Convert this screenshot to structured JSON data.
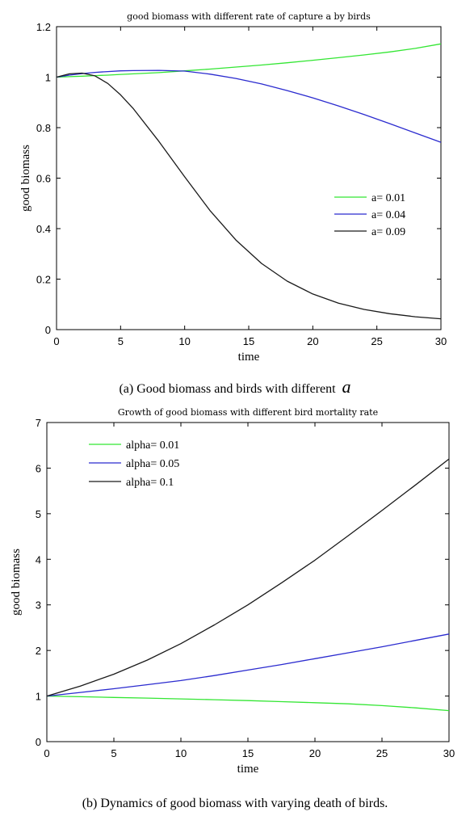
{
  "colors": {
    "green": "#33e633",
    "blue": "#2b2bcf",
    "black": "#1a1a1a",
    "axis": "#000000"
  },
  "captions": {
    "a": {
      "text": "(a) Good biomass and birds with different",
      "var": "a"
    },
    "b": {
      "text": "(b) Dynamics of good biomass with varying death of birds."
    }
  },
  "chart_data": [
    {
      "type": "line",
      "title": "good biomass with different rate of capture a by birds",
      "xlabel": "time",
      "ylabel": "good biomass",
      "xlim": [
        0,
        30
      ],
      "ylim": [
        0,
        1.2
      ],
      "xticks": [
        "0",
        "5",
        "10",
        "15",
        "20",
        "25",
        "30"
      ],
      "yticks": [
        "0",
        "0.2",
        "0.4",
        "0.6",
        "0.8",
        "1",
        "1.2"
      ],
      "legend_position": "middle-right",
      "x": [
        0,
        1,
        2,
        3,
        4,
        5,
        6,
        8,
        10,
        12,
        14,
        16,
        18,
        20,
        22,
        24,
        26,
        28,
        30
      ],
      "series": [
        {
          "name": "a= 0.01",
          "color": "green",
          "values": [
            1.0,
            1.002,
            1.004,
            1.006,
            1.008,
            1.011,
            1.013,
            1.018,
            1.025,
            1.032,
            1.04,
            1.048,
            1.057,
            1.067,
            1.077,
            1.088,
            1.1,
            1.114,
            1.132
          ]
        },
        {
          "name": "a= 0.04",
          "color": "blue",
          "values": [
            1.0,
            1.008,
            1.014,
            1.019,
            1.022,
            1.025,
            1.026,
            1.027,
            1.024,
            1.012,
            0.995,
            0.973,
            0.947,
            0.918,
            0.886,
            0.852,
            0.816,
            0.779,
            0.742
          ]
        },
        {
          "name": "a= 0.09",
          "color": "black",
          "values": [
            1.0,
            1.013,
            1.016,
            1.005,
            0.975,
            0.93,
            0.875,
            0.745,
            0.605,
            0.47,
            0.355,
            0.262,
            0.192,
            0.141,
            0.105,
            0.08,
            0.063,
            0.051,
            0.043
          ]
        }
      ]
    },
    {
      "type": "line",
      "title": "Growth of good biomass with different bird mortality rate",
      "xlabel": "time",
      "ylabel": "good biomass",
      "xlim": [
        0,
        30
      ],
      "ylim": [
        0,
        7
      ],
      "xticks": [
        "0",
        "5",
        "10",
        "15",
        "20",
        "25",
        "30"
      ],
      "yticks": [
        "0",
        "1",
        "2",
        "3",
        "4",
        "5",
        "6",
        "7"
      ],
      "legend_position": "top-left",
      "x": [
        0,
        2.5,
        5,
        7.5,
        10,
        12.5,
        15,
        17.5,
        20,
        22.5,
        25,
        27.5,
        30
      ],
      "series": [
        {
          "name": "alpha= 0.01",
          "color": "green",
          "values": [
            1.0,
            0.985,
            0.97,
            0.955,
            0.938,
            0.92,
            0.9,
            0.878,
            0.855,
            0.83,
            0.79,
            0.74,
            0.68
          ]
        },
        {
          "name": "alpha= 0.05",
          "color": "blue",
          "values": [
            1.0,
            1.08,
            1.16,
            1.25,
            1.34,
            1.45,
            1.57,
            1.69,
            1.82,
            1.95,
            2.08,
            2.22,
            2.36
          ]
        },
        {
          "name": "alpha= 0.1",
          "color": "black",
          "values": [
            1.0,
            1.22,
            1.48,
            1.79,
            2.15,
            2.56,
            3.0,
            3.48,
            3.98,
            4.52,
            5.07,
            5.63,
            6.2
          ]
        }
      ]
    }
  ]
}
